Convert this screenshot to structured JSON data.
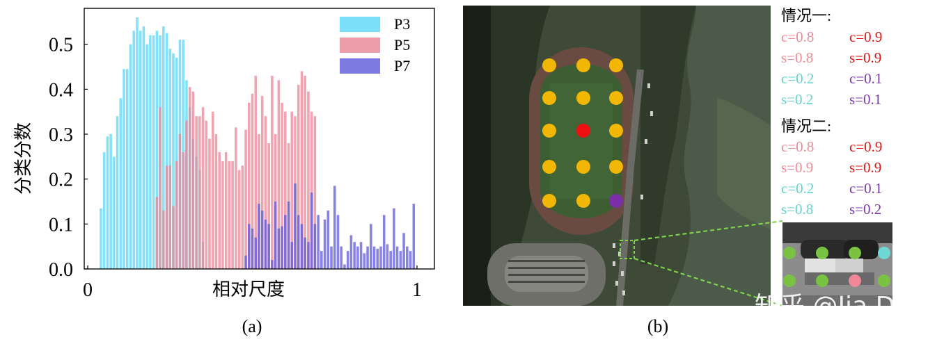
{
  "chart_data": {
    "type": "bar",
    "title": "",
    "xlabel": "相对尺度",
    "ylabel": "分类分数",
    "xlim": [
      0,
      1
    ],
    "ylim": [
      0,
      0.58
    ],
    "xticks": [
      "0",
      "1"
    ],
    "yticks": [
      "0.0",
      "0.1",
      "0.2",
      "0.3",
      "0.4",
      "0.5"
    ],
    "legend_position": "top-right",
    "bar_width": 0.0075,
    "series": [
      {
        "name": "P3",
        "color": "#5ad7f7",
        "x": [
          0.04,
          0.05,
          0.06,
          0.07,
          0.08,
          0.09,
          0.1,
          0.11,
          0.12,
          0.13,
          0.14,
          0.15,
          0.16,
          0.17,
          0.18,
          0.19,
          0.2,
          0.21,
          0.22,
          0.23,
          0.24,
          0.25,
          0.26,
          0.27,
          0.28,
          0.29,
          0.3,
          0.31,
          0.32,
          0.33,
          0.34,
          0.35
        ],
        "values": [
          0.135,
          0.26,
          0.295,
          0.3,
          0.25,
          0.34,
          0.38,
          0.445,
          0.445,
          0.5,
          0.53,
          0.56,
          0.53,
          0.54,
          0.5,
          0.52,
          0.52,
          0.53,
          0.52,
          0.54,
          0.525,
          0.49,
          0.48,
          0.47,
          0.51,
          0.51,
          0.42,
          0.36,
          0.29,
          0.25,
          0.22,
          0.06
        ]
      },
      {
        "name": "P5",
        "color": "#e98595",
        "x": [
          0.21,
          0.22,
          0.23,
          0.24,
          0.25,
          0.26,
          0.27,
          0.28,
          0.29,
          0.3,
          0.31,
          0.32,
          0.33,
          0.34,
          0.35,
          0.36,
          0.37,
          0.38,
          0.39,
          0.4,
          0.41,
          0.42,
          0.43,
          0.44,
          0.45,
          0.46,
          0.47,
          0.48,
          0.49,
          0.5,
          0.51,
          0.52,
          0.53,
          0.54,
          0.55,
          0.56,
          0.57,
          0.58,
          0.59,
          0.6,
          0.61,
          0.62,
          0.63,
          0.64,
          0.65,
          0.66,
          0.67,
          0.68,
          0.69
        ],
        "values": [
          0.16,
          0.36,
          0.13,
          0.23,
          0.23,
          0.14,
          0.24,
          0.3,
          0.26,
          0.33,
          0.405,
          0.395,
          0.34,
          0.34,
          0.36,
          0.33,
          0.29,
          0.35,
          0.3,
          0.26,
          0.24,
          0.26,
          0.24,
          0.24,
          0.315,
          0.22,
          0.23,
          0.31,
          0.37,
          0.39,
          0.43,
          0.3,
          0.385,
          0.34,
          0.28,
          0.43,
          0.3,
          0.42,
          0.37,
          0.35,
          0.28,
          0.35,
          0.34,
          0.41,
          0.44,
          0.43,
          0.395,
          0.35,
          0.34
        ]
      },
      {
        "name": "P7",
        "color": "#5d5ad9",
        "x": [
          0.48,
          0.49,
          0.5,
          0.51,
          0.52,
          0.53,
          0.54,
          0.55,
          0.56,
          0.57,
          0.58,
          0.59,
          0.6,
          0.61,
          0.62,
          0.63,
          0.64,
          0.65,
          0.66,
          0.67,
          0.68,
          0.69,
          0.7,
          0.71,
          0.72,
          0.73,
          0.74,
          0.75,
          0.76,
          0.77,
          0.78,
          0.79,
          0.8,
          0.81,
          0.82,
          0.83,
          0.84,
          0.85,
          0.86,
          0.87,
          0.88,
          0.89,
          0.9,
          0.91,
          0.92,
          0.93,
          0.94,
          0.95,
          0.96,
          0.97,
          0.98,
          0.99
        ],
        "values": [
          0.03,
          0.1,
          0.09,
          0.07,
          0.145,
          0.13,
          0.11,
          0.1,
          0.02,
          0.15,
          0.09,
          0.095,
          0.12,
          0.15,
          0.06,
          0.19,
          0.12,
          0.1,
          0.07,
          0.06,
          0.17,
          0.1,
          0.12,
          0.04,
          0.11,
          0.13,
          0.05,
          0.185,
          0.12,
          0.05,
          0.01,
          0.04,
          0.075,
          0.06,
          0.05,
          0.06,
          0.035,
          0.05,
          0.1,
          0.05,
          0.045,
          0.05,
          0.12,
          0.055,
          0.04,
          0.135,
          0.05,
          0.04,
          0.08,
          0.05,
          0.04,
          0.145
        ]
      }
    ]
  },
  "captions": {
    "a": "(a)",
    "b": "(b)"
  },
  "legend": [
    "P3",
    "P5",
    "P7"
  ],
  "grid_points": {
    "dot_colors": {
      "yellow": "#f2b705",
      "red": "#ee1010",
      "purple": "#7a2fa8"
    },
    "rows": [
      [
        "yellow",
        "yellow",
        "yellow"
      ],
      [
        "yellow",
        "yellow",
        "yellow"
      ],
      [
        "yellow",
        "red",
        "yellow"
      ],
      [
        "yellow",
        "yellow",
        "yellow"
      ],
      [
        "yellow",
        "yellow",
        "purple"
      ]
    ]
  },
  "zoom_dots": {
    "colors": {
      "green": "#79c242",
      "cyan": "#6fd8d6",
      "pink": "#ee8899"
    },
    "top": [
      "green",
      "green",
      "green",
      "cyan"
    ],
    "bottom": [
      "green",
      "green",
      "pink",
      "green"
    ]
  },
  "cases": [
    {
      "title": "情况一:",
      "lines": [
        {
          "left": "c=0.8",
          "left_color": "#ef8b96",
          "right": "c=0.9",
          "right_color": "#e01515"
        },
        {
          "left": "s=0.8",
          "left_color": "#ef8b96",
          "right": "s=0.9",
          "right_color": "#e01515"
        },
        {
          "left": "c=0.2",
          "left_color": "#65d3c9",
          "right": "c=0.1",
          "right_color": "#7b3aa8"
        },
        {
          "left": "s=0.2",
          "left_color": "#65d3c9",
          "right": "s=0.1",
          "right_color": "#7b3aa8"
        }
      ]
    },
    {
      "title": "情况二:",
      "lines": [
        {
          "left": "c=0.8",
          "left_color": "#ef8b96",
          "right": "c=0.9",
          "right_color": "#e01515"
        },
        {
          "left": "s=0.9",
          "left_color": "#ef8b96",
          "right": "s=0.9",
          "right_color": "#e01515"
        },
        {
          "left": "c=0.2",
          "left_color": "#65d3c9",
          "right": "c=0.1",
          "right_color": "#7b3aa8"
        },
        {
          "left": "s=0.8",
          "left_color": "#65d3c9",
          "right": "s=0.2",
          "right_color": "#7b3aa8"
        }
      ]
    }
  ],
  "watermark": "知乎 @Jia Di"
}
